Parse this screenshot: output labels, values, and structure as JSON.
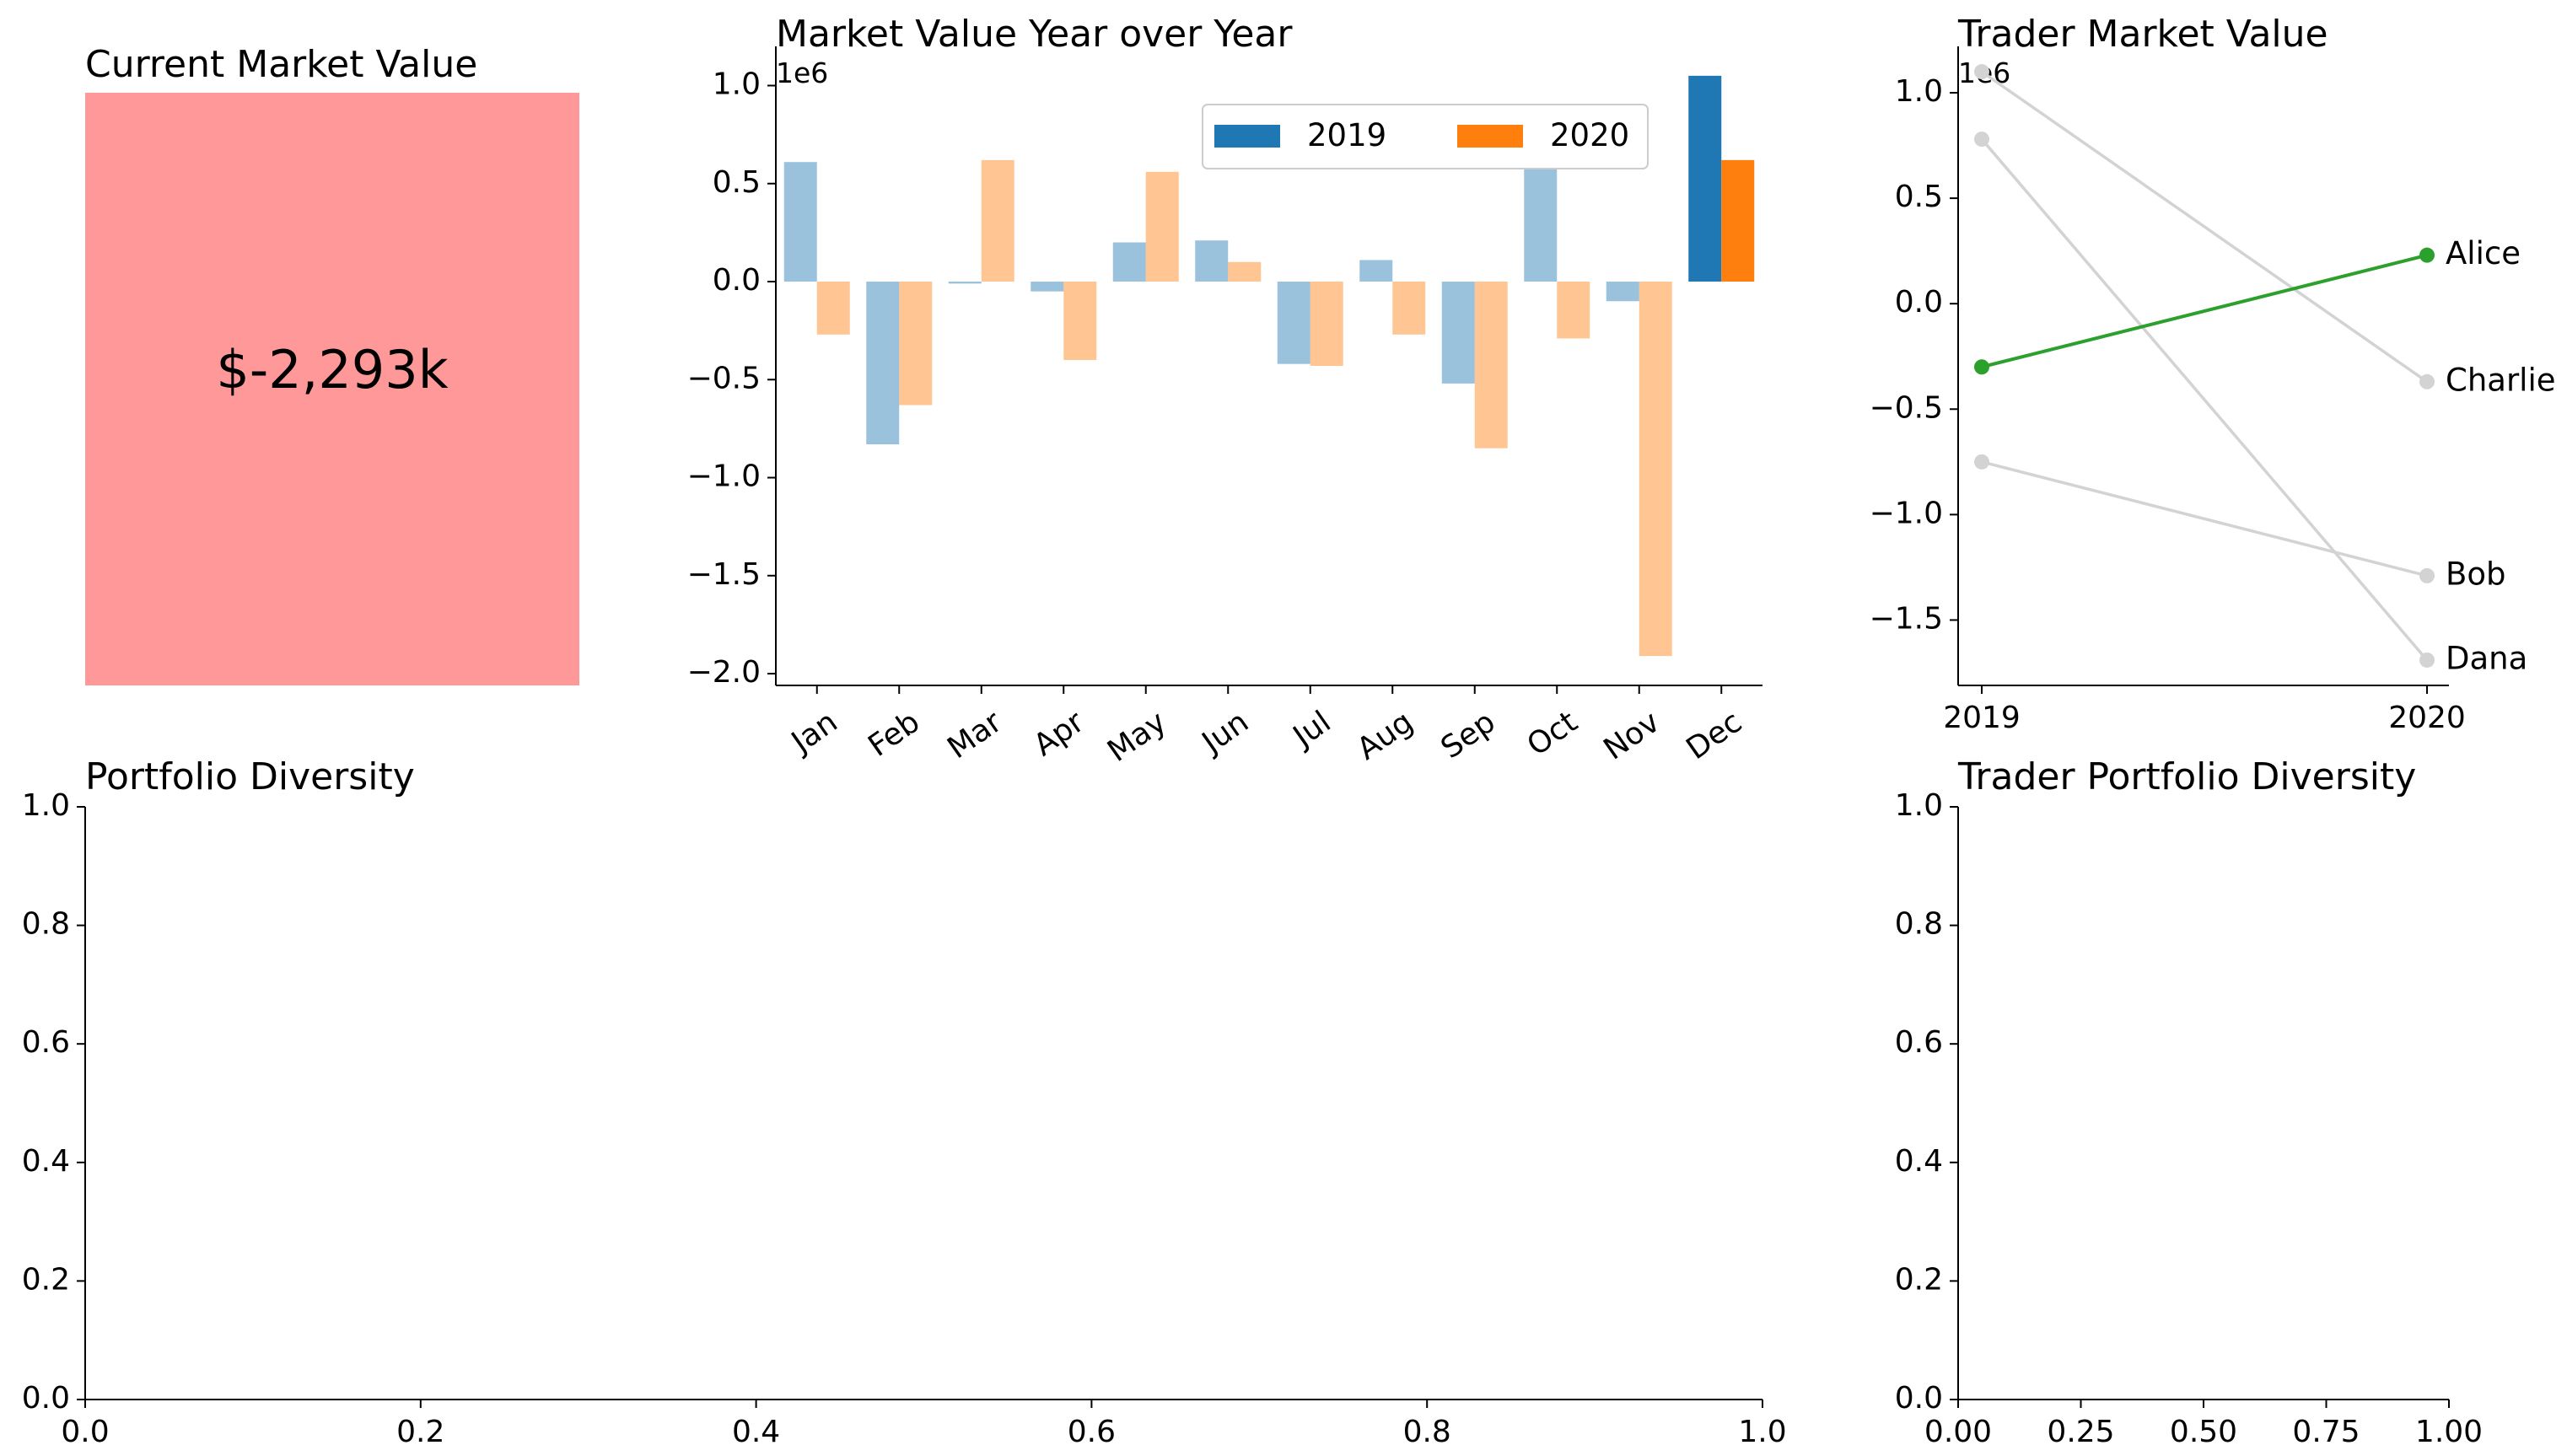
{
  "kpi": {
    "title": "Current Market Value",
    "value_text": "$-2,293k",
    "value": -2293,
    "unit": "thousand USD",
    "background_color": "#ff9999"
  },
  "chart_data": [
    {
      "id": "yoy",
      "type": "bar",
      "title": "Market Value Year over Year",
      "scale_label": "1e6",
      "categories": [
        "Jan",
        "Feb",
        "Mar",
        "Apr",
        "May",
        "Jun",
        "Jul",
        "Aug",
        "Sep",
        "Oct",
        "Nov",
        "Dec"
      ],
      "series": [
        {
          "name": "2019",
          "color": "#1f77b4",
          "values": [
            0.61,
            -0.83,
            -0.01,
            -0.05,
            0.2,
            0.21,
            -0.42,
            0.11,
            -0.52,
            0.58,
            -0.1,
            1.05
          ]
        },
        {
          "name": "2020",
          "color": "#ff7f0e",
          "values": [
            -0.27,
            -0.63,
            0.62,
            -0.4,
            0.56,
            0.1,
            -0.43,
            -0.27,
            -0.85,
            -0.29,
            -1.91,
            0.62
          ]
        }
      ],
      "highlight_category": "Dec",
      "faded_opacity": 0.45,
      "ylim": [
        -2.06,
        1.2
      ],
      "yticks": [
        {
          "v": 1.0,
          "label": "1.0"
        },
        {
          "v": 0.5,
          "label": "0.5"
        },
        {
          "v": 0.0,
          "label": "0.0"
        },
        {
          "v": -0.5,
          "label": "−0.5"
        },
        {
          "v": -1.0,
          "label": "−1.0"
        },
        {
          "v": -1.5,
          "label": "−1.5"
        },
        {
          "v": -2.0,
          "label": "−2.0"
        }
      ],
      "legend": {
        "placement": "top-right",
        "entries": [
          "2019",
          "2020"
        ]
      }
    },
    {
      "id": "trader",
      "type": "line",
      "title": "Trader Market Value",
      "scale_label": "1e6",
      "x": [
        "2019",
        "2020"
      ],
      "series": [
        {
          "name": "Alice",
          "values": [
            -0.3,
            0.23
          ],
          "color": "#2ca02c",
          "highlight": true
        },
        {
          "name": "Charlie",
          "values": [
            1.1,
            -0.37
          ],
          "color": "#d3d3d3",
          "highlight": false
        },
        {
          "name": "Bob",
          "values": [
            -0.75,
            -1.29
          ],
          "color": "#d3d3d3",
          "highlight": false
        },
        {
          "name": "Dana",
          "values": [
            0.78,
            -1.69
          ],
          "color": "#d3d3d3",
          "highlight": false
        }
      ],
      "ylim": [
        -1.81,
        1.22
      ],
      "yticks": [
        {
          "v": 1.0,
          "label": "1.0"
        },
        {
          "v": 0.5,
          "label": "0.5"
        },
        {
          "v": 0.0,
          "label": "0.0"
        },
        {
          "v": -0.5,
          "label": "−0.5"
        },
        {
          "v": -1.0,
          "label": "−1.0"
        },
        {
          "v": -1.5,
          "label": "−1.5"
        }
      ]
    },
    {
      "id": "diversity",
      "type": "scatter",
      "title": "Portfolio Diversity",
      "series": [],
      "xlim": [
        0,
        1
      ],
      "ylim": [
        0,
        1
      ],
      "xticks": [
        "0.0",
        "0.2",
        "0.4",
        "0.6",
        "0.8",
        "1.0"
      ],
      "yticks": [
        "0.0",
        "0.2",
        "0.4",
        "0.6",
        "0.8",
        "1.0"
      ]
    },
    {
      "id": "trader_diversity",
      "type": "scatter",
      "title": "Trader Portfolio Diversity",
      "series": [],
      "xlim": [
        0,
        1
      ],
      "ylim": [
        0,
        1
      ],
      "xticks": [
        "0.00",
        "0.25",
        "0.50",
        "0.75",
        "1.00"
      ],
      "yticks": [
        "0.0",
        "0.2",
        "0.4",
        "0.6",
        "0.8",
        "1.0"
      ]
    }
  ]
}
